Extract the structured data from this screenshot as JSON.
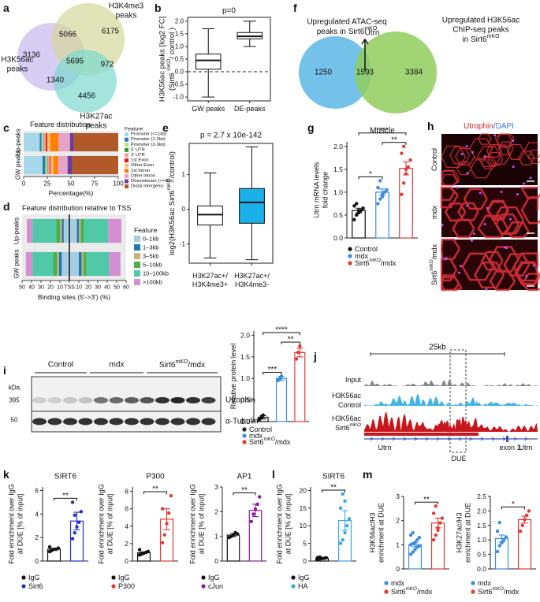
{
  "chart_data": [
    {
      "type": "venn3",
      "panel": "a",
      "sets": [
        {
          "name": [
            "H3K56ac",
            "peaks"
          ],
          "color": "#c8b9ef"
        },
        {
          "name": [
            "H3K4me3",
            "peaks"
          ],
          "color": "#d4d99a"
        },
        {
          "name": [
            "H3K27ac",
            "peaks"
          ],
          "color": "#7ed9cf"
        }
      ],
      "counts": [
        3136,
        5066,
        6175,
        5695,
        972,
        1340,
        4456
      ]
    },
    {
      "type": "box",
      "panel": "b",
      "title": "p=0",
      "ylabel": [
        "H3K56ac peaks [log2 FC]",
        [
          "(Sirt6 ",
          "mKO",
          "/ control )"
        ]
      ],
      "categories": [
        "GW peaks",
        "DE-peaks"
      ],
      "ylim": [
        -1.15,
        2.15
      ],
      "yticks": [
        {
          "value": -1,
          "label": "-1.0"
        },
        -0.5,
        {
          "value": 0,
          "label": "0.0"
        },
        0.5,
        {
          "value": 1,
          "label": "1.0"
        },
        1.5,
        {
          "value": 2,
          "label": "2.0"
        }
      ],
      "reference_line": 0,
      "boxes": [
        {
          "min": -1.0,
          "q1": 0.1,
          "median": 0.45,
          "q3": 0.7,
          "max": 1.7,
          "color": "#ffffff"
        },
        {
          "min": 1.0,
          "q1": 1.3,
          "median": 1.4,
          "q3": 1.55,
          "max": 2.0,
          "color": "#ffffff"
        }
      ]
    },
    {
      "type": "venn2",
      "panel": "f",
      "sets": [
        {
          "name": [
            "Upregulated ATAC-seq",
            [
              "peaks in Sirt6",
              "mKO"
            ]
          ],
          "color": "#5cb6e6"
        },
        {
          "name": [
            "Upregulated H3K56ac",
            "ChIP-seq peaks",
            [
              "in Sirt6",
              "mKO"
            ]
          ],
          "color": "#8fcc5c"
        }
      ],
      "counts": [
        1250,
        1593,
        3384
      ],
      "annotation": "Utrn"
    },
    {
      "type": "stacked_hbar",
      "panel": "c",
      "title": "Feature distribution",
      "categories": [
        "Up-peaks",
        "GW peaks"
      ],
      "xlabel": "Percentage(%)",
      "xlim": [
        0,
        100
      ],
      "xticks": [
        0,
        25,
        50,
        75,
        100
      ],
      "legend_title": "Feature",
      "series": [
        {
          "name": "Promoter (<=1kb)",
          "color": "#a6d8ea",
          "values": [
            17,
            20
          ]
        },
        {
          "name": "Promoter (1-2kb)",
          "color": "#2b7bba",
          "values": [
            2,
            3
          ]
        },
        {
          "name": "Promoter (2-3kb)",
          "color": "#b2df8a",
          "values": [
            2,
            2
          ]
        },
        {
          "name": "5' UTR",
          "color": "#33a02c",
          "values": [
            0.5,
            0.5
          ]
        },
        {
          "name": "3' UTR",
          "color": "#fb9a99",
          "values": [
            2,
            2
          ]
        },
        {
          "name": "1st Exon",
          "color": "#e31a1c",
          "values": [
            1.5,
            1
          ]
        },
        {
          "name": "Other Exon",
          "color": "#fdbf6f",
          "values": [
            3,
            3
          ]
        },
        {
          "name": "1st Intron",
          "color": "#ff7f00",
          "values": [
            9,
            5
          ]
        },
        {
          "name": "Other Intron",
          "color": "#e6a3c8",
          "values": [
            12,
            10
          ]
        },
        {
          "name": "Downstream (<=3kb)",
          "color": "#6a3d9a",
          "values": [
            4,
            5
          ]
        },
        {
          "name": "Distal Intergenic",
          "color": "#b15928",
          "values": [
            47,
            48.5
          ]
        }
      ]
    },
    {
      "type": "diverging_bar",
      "panel": "d",
      "title": "Feature distribution relative to TSS",
      "categories": [
        "Up-peaks",
        "GW peaks"
      ],
      "xlabel": "Binding sites (5'->3') (%)",
      "xlim": [
        -50,
        60
      ],
      "xticks": [
        {
          "value": -50,
          "label": "50"
        },
        {
          "value": -40,
          "label": "40"
        },
        {
          "value": -30,
          "label": "30"
        },
        {
          "value": -20,
          "label": "20"
        },
        {
          "value": -10,
          "label": "10"
        },
        {
          "value": 0,
          "label": "TSS"
        },
        10,
        20,
        30,
        40,
        50,
        60
      ],
      "legend_title": "Feature",
      "series": [
        {
          "name": "0–1kb",
          "color": "#a6cee3",
          "upstream": [
            6,
            8
          ],
          "downstream": [
            8,
            10
          ]
        },
        {
          "name": "1–3kb",
          "color": "#1f78b4",
          "upstream": [
            2,
            3
          ],
          "downstream": [
            2,
            3
          ]
        },
        {
          "name": "3–5kb",
          "color": "#c7b27a",
          "upstream": [
            2,
            2
          ],
          "downstream": [
            2,
            2
          ]
        },
        {
          "name": "5–10kb",
          "color": "#4daf4a",
          "upstream": [
            4,
            4
          ],
          "downstream": [
            3,
            3
          ]
        },
        {
          "name": "10–100kb",
          "color": "#4fc9a6",
          "upstream": [
            25,
            22
          ],
          "downstream": [
            26,
            24
          ]
        },
        {
          "name": ">100kb",
          "color": "#d48fd2",
          "upstream": [
            6,
            7
          ],
          "downstream": [
            14,
            12
          ]
        }
      ]
    },
    {
      "type": "box",
      "panel": "e",
      "title": "p = 2.7 x 10e-142",
      "ylabel": [
        [
          "log2(H3K56ac Sirt6",
          "mKO",
          "/control)"
        ]
      ],
      "categories": [
        [
          "H3K27ac+/",
          "H3K4me3+"
        ],
        [
          "H3K27ac+/",
          "H3K4me3-"
        ]
      ],
      "ylim": [
        -1.55,
        1.9
      ],
      "yticks": [
        -1,
        0,
        1
      ],
      "boxes": [
        {
          "min": -1.4,
          "q1": -0.45,
          "median": -0.15,
          "q3": 0.1,
          "max": 1.05,
          "color": "#ffffff"
        },
        {
          "min": -1.45,
          "q1": -0.4,
          "median": 0.2,
          "q3": 0.6,
          "max": 1.8,
          "color": "#1ab0e8"
        }
      ]
    },
    {
      "type": "bar_dots",
      "panel": "g",
      "title": "Muscle",
      "ylabel": [
        "Utrn mRNA levels",
        "fold change"
      ],
      "ylim": [
        0,
        2.1
      ],
      "yticks": [
        {
          "value": 0,
          "label": "0.0"
        },
        0.5,
        {
          "value": 1,
          "label": "1.0"
        },
        1.5,
        {
          "value": 2,
          "label": "2.0"
        }
      ],
      "series": [
        {
          "name": "Control",
          "color": "#111111",
          "value": 0.6,
          "error": 0.05,
          "points": [
            0.4,
            0.5,
            0.55,
            0.6,
            0.65,
            0.7,
            0.75,
            0.6
          ]
        },
        {
          "name": "mdx",
          "color": "#3b8de0",
          "value": 1.0,
          "error": 0.07,
          "points": [
            0.75,
            0.85,
            0.95,
            1.0,
            1.05,
            1.1,
            1.25,
            0.9
          ]
        },
        {
          "name": [
            [
              "Sirt6",
              "mKO",
              "/mdx"
            ]
          ],
          "color": "#e53935",
          "value": 1.52,
          "error": 0.14,
          "points": [
            0.95,
            1.2,
            1.4,
            1.55,
            1.7,
            1.85,
            2.0,
            1.5
          ]
        }
      ],
      "comparisons": [
        {
          "groups": [
            0,
            1
          ],
          "label": "*"
        },
        {
          "groups": [
            1,
            2
          ],
          "label": "**"
        },
        {
          "groups": [
            0,
            2
          ],
          "label": "****"
        }
      ]
    },
    {
      "type": "micrograph",
      "panel": "h",
      "title": [
        "Utrophin",
        "/DAPI"
      ],
      "rows": [
        "Control",
        "mdx",
        [
          [
            "Sirt6",
            "mKO",
            "/mdx"
          ]
        ]
      ]
    },
    {
      "type": "blot",
      "panel": "i",
      "unit": "kDa",
      "marker_sizes": [
        395,
        50
      ],
      "groups": [
        "Control",
        "mdx",
        [
          [
            "Sirt6",
            "mKO",
            "/mdx"
          ]
        ]
      ],
      "bands": [
        "Utrophin",
        "α-Tubulin"
      ]
    },
    {
      "type": "bar_dots",
      "ylabel": "Relative protein level",
      "ylim": [
        0,
        2.1
      ],
      "yticks": [
        {
          "value": 0,
          "label": "0.0"
        },
        0.5,
        {
          "value": 1,
          "label": "1.0"
        },
        1.5,
        {
          "value": 2,
          "label": "2.0"
        }
      ],
      "series": [
        {
          "name": "Control",
          "color": "#111111",
          "value": 0.1,
          "error": 0.04,
          "points": [
            0.05,
            0.1,
            0.15
          ]
        },
        {
          "name": "mdx",
          "color": "#3b8de0",
          "value": 1.0,
          "error": 0.05,
          "points": [
            0.95,
            1.0,
            1.05
          ]
        },
        {
          "name": [
            [
              "Sirt6",
              "mKO",
              "/mdx"
            ]
          ],
          "color": "#e53935",
          "value": 1.6,
          "error": 0.1,
          "points": [
            1.45,
            1.6,
            1.75
          ]
        }
      ],
      "comparisons": [
        {
          "groups": [
            0,
            1
          ],
          "label": "***"
        },
        {
          "groups": [
            1,
            2
          ],
          "label": "**"
        },
        {
          "groups": [
            0,
            2
          ],
          "label": "****"
        }
      ]
    },
    {
      "type": "tracks",
      "panel": "j",
      "scale": "25kb",
      "tracks": [
        [
          "Input"
        ],
        [
          "H3K56ac",
          "Control"
        ],
        [
          "H3K56ac",
          [
            "Sirt6",
            "mKO"
          ]
        ]
      ],
      "genes": [
        "Utrn",
        "Utrn"
      ],
      "exon": "exon 1",
      "region": "DUE"
    },
    {
      "type": "bar_dots",
      "panel": "k",
      "title": "SIRT6",
      "ylabel": [
        "Fold enrichment over IgG",
        "at DUE [% of input]"
      ],
      "ylim": [
        0,
        6.3
      ],
      "yticks": [
        0,
        2,
        4,
        6
      ],
      "series": [
        {
          "name": "IgG",
          "color": "#111111",
          "value": 1.0,
          "error": 0.07,
          "points": [
            0.8,
            0.9,
            1.0,
            1.0,
            1.1,
            1.2
          ]
        },
        {
          "name": "Sirt6",
          "color": "#2234c8",
          "value": 3.4,
          "error": 0.75,
          "points": [
            1.9,
            2.4,
            2.9,
            3.3,
            4.2,
            5.0,
            3.9
          ]
        }
      ],
      "comparisons": [
        {
          "groups": [
            0,
            1
          ],
          "label": "**"
        }
      ]
    },
    {
      "type": "bar_dots",
      "title": "P300",
      "ylabel": [
        "Fold enrichment over IgG",
        "at DUE [% of input]"
      ],
      "ylim": [
        0,
        8.5
      ],
      "yticks": [
        0,
        2,
        4,
        6,
        8
      ],
      "series": [
        {
          "name": "IgG",
          "color": "#111111",
          "value": 0.95,
          "error": 0.1,
          "points": [
            0.7,
            0.8,
            0.9,
            1.0,
            1.1,
            1.3
          ]
        },
        {
          "name": "P300",
          "color": "#e53935",
          "value": 4.8,
          "error": 1.2,
          "points": [
            2.1,
            3.0,
            4.3,
            5.5,
            7.5,
            6.0
          ]
        }
      ],
      "comparisons": [
        {
          "groups": [
            0,
            1
          ],
          "label": "**"
        }
      ]
    },
    {
      "type": "bar_dots",
      "title": "AP1",
      "ylabel": [
        "Fold enrichment over IgG",
        "at DUE [% of input]"
      ],
      "ylim": [
        0,
        3
      ],
      "yticks": [
        0,
        1,
        2,
        3
      ],
      "series": [
        {
          "name": "IgG",
          "color": "#111111",
          "value": 1.05,
          "error": 0.06,
          "points": [
            0.95,
            1.0,
            1.05,
            1.15,
            1.1
          ]
        },
        {
          "name": "cJun",
          "color": "#8b1a9e",
          "value": 2.05,
          "error": 0.25,
          "points": [
            1.6,
            1.9,
            2.1,
            2.3,
            2.6
          ]
        }
      ],
      "comparisons": [
        {
          "groups": [
            0,
            1
          ],
          "label": "**"
        }
      ]
    },
    {
      "type": "bar_dots",
      "panel": "l",
      "title": "SIRT6",
      "ylabel": [
        "Fold enrichment over IgG",
        "at DUE [% of input]"
      ],
      "ylim": [
        0,
        21
      ],
      "yticks": [
        0,
        5,
        10,
        15,
        20
      ],
      "series": [
        {
          "name": "IgG",
          "color": "#111111",
          "value": 0.8,
          "error": 0.15,
          "points": [
            0.5,
            0.6,
            0.7,
            0.8,
            0.9,
            1.0,
            1.1
          ]
        },
        {
          "name": "HA",
          "color": "#3aa6e8",
          "value": 11.5,
          "error": 2.8,
          "points": [
            5,
            6,
            8,
            10,
            12,
            15,
            19,
            17
          ]
        }
      ],
      "comparisons": [
        {
          "groups": [
            0,
            1
          ],
          "label": "**"
        }
      ]
    },
    {
      "type": "bar_dots",
      "panel": "m",
      "ylabel": [
        "H3K56ac/H3",
        "enrichment at DUE"
      ],
      "ylim": [
        0,
        3
      ],
      "yticks": [
        0,
        1,
        2,
        3
      ],
      "series": [
        {
          "name": "mdx",
          "color": "#3b8de0",
          "value": 1.0,
          "error": 0.08,
          "points": [
            0.6,
            0.7,
            0.8,
            0.9,
            0.95,
            1.0,
            1.05,
            1.1,
            1.2,
            1.3,
            1.4,
            1.5
          ]
        },
        {
          "name": [
            [
              "Sirt6",
              "mKO",
              "/mdx"
            ]
          ],
          "color": "#e53935",
          "value": 1.9,
          "error": 0.2,
          "points": [
            1.2,
            1.4,
            1.6,
            1.9,
            2.1,
            2.3,
            2.6,
            1.7
          ]
        }
      ],
      "comparisons": [
        {
          "groups": [
            0,
            1
          ],
          "label": "**"
        }
      ]
    },
    {
      "type": "bar_dots",
      "ylabel": [
        "H3K27ac/H3",
        "enrichment at DUE"
      ],
      "ylim": [
        0,
        2.5
      ],
      "yticks": [
        {
          "value": 0,
          "label": "0.0"
        },
        0.5,
        {
          "value": 1,
          "label": "1.0"
        },
        1.5,
        {
          "value": 2,
          "label": "2.0"
        },
        2.5
      ],
      "series": [
        {
          "name": "mdx",
          "color": "#3b8de0",
          "value": 1.05,
          "error": 0.12,
          "points": [
            0.6,
            0.8,
            0.9,
            1.0,
            1.1,
            1.3,
            1.6
          ]
        },
        {
          "name": [
            [
              "Sirt6",
              "mKO",
              "/mdx"
            ]
          ],
          "color": "#e53935",
          "value": 1.7,
          "error": 0.12,
          "points": [
            1.3,
            1.5,
            1.7,
            1.85,
            2.0
          ]
        }
      ],
      "comparisons": [
        {
          "groups": [
            0,
            1
          ],
          "label": "*"
        }
      ]
    }
  ]
}
